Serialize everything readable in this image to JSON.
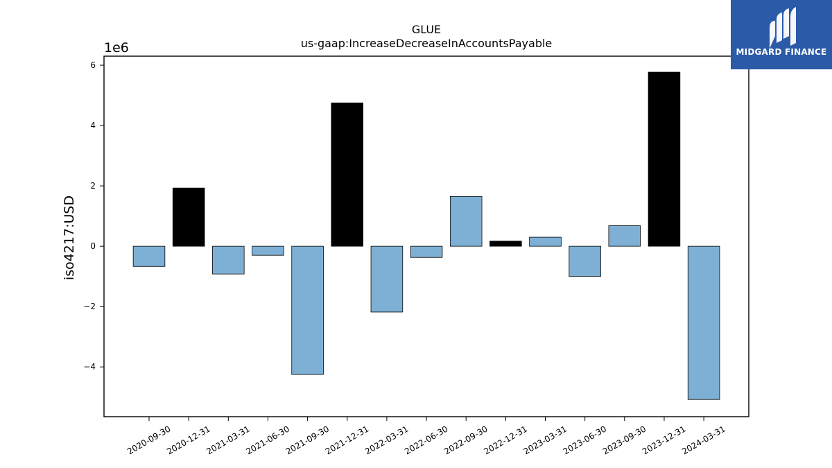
{
  "chart_data": {
    "type": "bar",
    "title": "GLUE",
    "subtitle": "us-gaap:IncreaseDecreaseInAccountsPayable",
    "ylabel": "iso4217:USD",
    "xlabel": "",
    "y_scale_label": "1e6",
    "ylim": [
      -5.65,
      6.3
    ],
    "yticks": [
      -4,
      -2,
      0,
      2,
      4,
      6
    ],
    "ytick_labels": [
      "−4",
      "−2",
      "0",
      "2",
      "4",
      "6"
    ],
    "categories": [
      "2020-09-30",
      "2020-12-31",
      "2021-03-31",
      "2021-06-30",
      "2021-09-30",
      "2021-12-31",
      "2022-03-31",
      "2022-06-30",
      "2022-09-30",
      "2022-12-31",
      "2023-03-31",
      "2023-06-30",
      "2023-09-30",
      "2023-12-31",
      "2024-03-31"
    ],
    "values": [
      -0.67,
      1.93,
      -0.92,
      -0.3,
      -4.25,
      4.75,
      -2.18,
      -0.37,
      1.65,
      0.17,
      0.3,
      -1.0,
      0.68,
      5.77,
      -5.08
    ],
    "highlight": [
      false,
      true,
      false,
      false,
      false,
      true,
      false,
      false,
      false,
      true,
      false,
      false,
      false,
      true,
      false
    ],
    "colors": {
      "normal": "#7eb0d5",
      "highlight": "#000000",
      "edge": "#000000"
    },
    "legend": "none",
    "grid": false
  },
  "logo": {
    "text": "MIDGARD FINANCE",
    "background": "#2b5aa8"
  }
}
